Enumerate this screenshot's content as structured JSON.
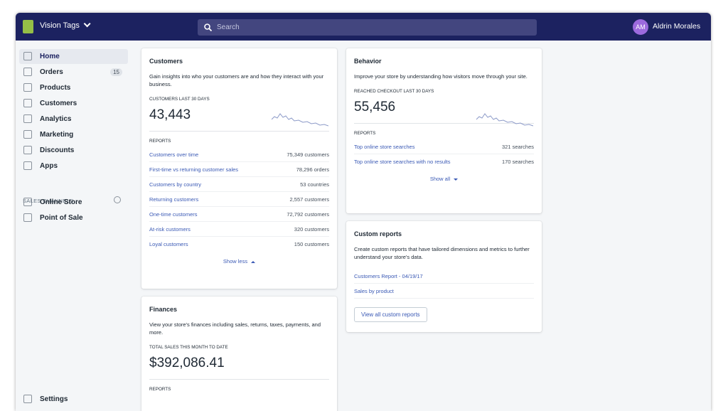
{
  "top_bar": {
    "store_name": "Vision Tags",
    "search_placeholder": "Search",
    "user_initials": "AM",
    "user_name": "Aldrin Morales"
  },
  "sidebar": {
    "nav": [
      {
        "label": "Home"
      },
      {
        "label": "Orders",
        "badge": 15
      },
      {
        "label": "Products"
      },
      {
        "label": "Customers"
      },
      {
        "label": "Analytics"
      },
      {
        "label": "Marketing"
      },
      {
        "label": "Discounts"
      },
      {
        "label": "Apps"
      }
    ],
    "sales_channels_heading": "SALES CHANNELS",
    "sales_channels": [
      "Online Store",
      "Point of Sale"
    ],
    "settings": "Settings"
  },
  "cards": {
    "customers": {
      "title": "Customers",
      "description": "Gain insights into who your customers are and how they interact with your business.",
      "metric_label": "CUSTOMERS LAST 30 DAYS",
      "metric": "43,443",
      "reports_label": "REPORTS",
      "reports": [
        {
          "name": "Customers over time",
          "value": "75,349 customers"
        },
        {
          "name": "First-time vs returning customer sales",
          "value": "78,296 orders"
        },
        {
          "name": "Customers by country",
          "value": "53 countries"
        },
        {
          "name": "Returning customers",
          "value": "2,557 customers"
        },
        {
          "name": "One-time customers",
          "value": "72,792 customers"
        },
        {
          "name": "At-risk customers",
          "value": "320 customers"
        },
        {
          "name": "Loyal customers",
          "value": "150 customers"
        }
      ],
      "toggle": "Show less"
    },
    "behavior": {
      "title": "Behavior",
      "description": "Improve your store by understanding how visitors move through your site.",
      "metric_label": "REACHED CHECKOUT LAST 30 DAYS",
      "metric": "55,456",
      "reports_label": "REPORTS",
      "reports": [
        {
          "name": "Top online store searches",
          "value": "321 searches"
        },
        {
          "name": "Top online store searches with no results",
          "value": "170 searches"
        }
      ],
      "toggle": "Show all"
    },
    "custom_reports": {
      "title": "Custom reports",
      "description": "Create custom reports that have tailored dimensions and metrics to further understand your store's data.",
      "links": [
        "Customers Report - 04/19/17",
        "Sales by product"
      ],
      "button": "View all custom reports"
    },
    "finances": {
      "title": "Finances",
      "description": "View your store's finances including sales, returns, taxes, payments, and more.",
      "metric_label": "TOTAL SALES THIS MONTH TO DATE",
      "metric": "$392,086.41",
      "reports_label": "REPORTS"
    }
  }
}
